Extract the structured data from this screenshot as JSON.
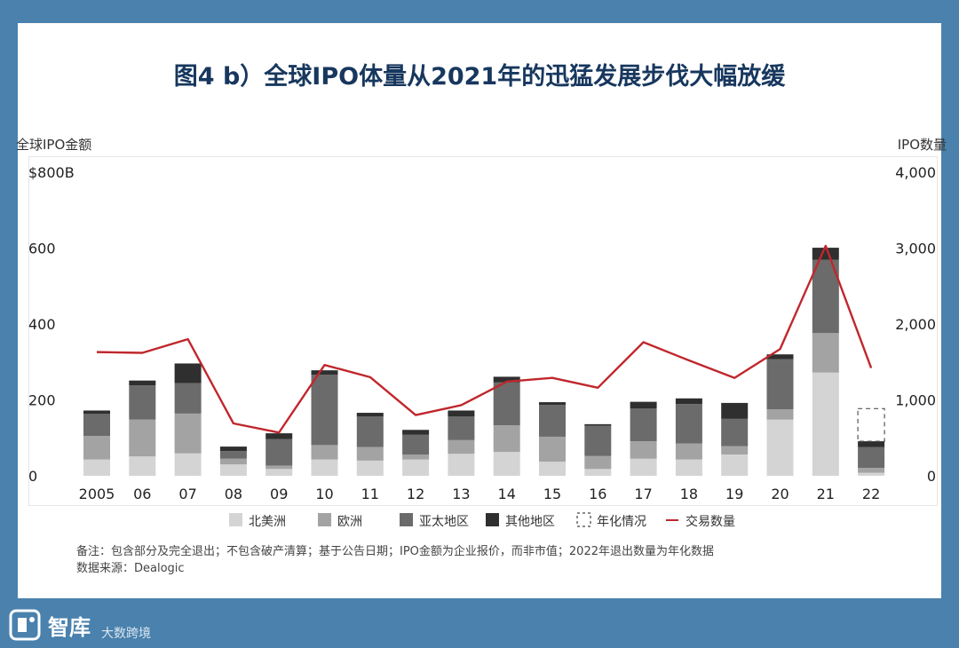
{
  "title": "图4 b）全球IPO体量从2021年的迅猛发展步伐大幅放缓",
  "left_axis_caption": "全球IPO金额",
  "right_axis_caption": "IPO数量",
  "notes": {
    "line1": "备注：包含部分及完全退出；不包含破产清算；基于公告日期；IPO金额为企业报价，而非市值；2022年退出数量为年化数据",
    "line2": "数据来源：Dealogic"
  },
  "brand": {
    "name": "智库",
    "sub": "大数跨境"
  },
  "colors": {
    "background": "#4a81ad",
    "title": "#17375e",
    "north_america": "#d4d4d4",
    "europe": "#a3a3a3",
    "asia_pacific": "#6b6b6b",
    "other": "#2f2f2f",
    "line": "#c0272d"
  },
  "chart_data": {
    "type": "bar",
    "stacked": true,
    "categories": [
      "2005",
      "06",
      "07",
      "08",
      "09",
      "10",
      "11",
      "12",
      "13",
      "14",
      "15",
      "16",
      "17",
      "18",
      "19",
      "20",
      "21",
      "22"
    ],
    "left_ticks": [
      "$800B",
      "600",
      "400",
      "200",
      "0"
    ],
    "right_ticks": [
      "4,000",
      "3,000",
      "2,000",
      "1,000",
      "0"
    ],
    "ylim_left": [
      0,
      800
    ],
    "ylim_right": [
      0,
      4000
    ],
    "series": [
      {
        "name": "北美洲",
        "key": "north_america",
        "values": [
          43,
          51,
          59,
          30,
          18,
          43,
          40,
          43,
          58,
          63,
          37,
          18,
          45,
          43,
          56,
          148,
          272,
          8
        ]
      },
      {
        "name": "欧洲",
        "key": "europe",
        "values": [
          62,
          97,
          105,
          15,
          9,
          38,
          36,
          13,
          36,
          70,
          66,
          34,
          46,
          42,
          22,
          27,
          104,
          13
        ]
      },
      {
        "name": "亚太地区",
        "key": "asia_pacific",
        "values": [
          58,
          90,
          80,
          20,
          70,
          185,
          80,
          52,
          62,
          113,
          84,
          80,
          86,
          104,
          72,
          132,
          193,
          55
        ]
      },
      {
        "name": "其他地区",
        "key": "other",
        "values": [
          9,
          13,
          52,
          12,
          15,
          12,
          10,
          13,
          16,
          15,
          7,
          4,
          18,
          15,
          42,
          13,
          32,
          15
        ]
      }
    ],
    "annualized": {
      "category": "22",
      "name": "年化情况",
      "value": 177
    },
    "line_series": {
      "name": "交易数量",
      "axis": "right",
      "values": [
        1630,
        1620,
        1800,
        690,
        570,
        1460,
        1300,
        800,
        930,
        1240,
        1290,
        1160,
        1760,
        1520,
        1290,
        1670,
        3030,
        1420
      ]
    }
  }
}
